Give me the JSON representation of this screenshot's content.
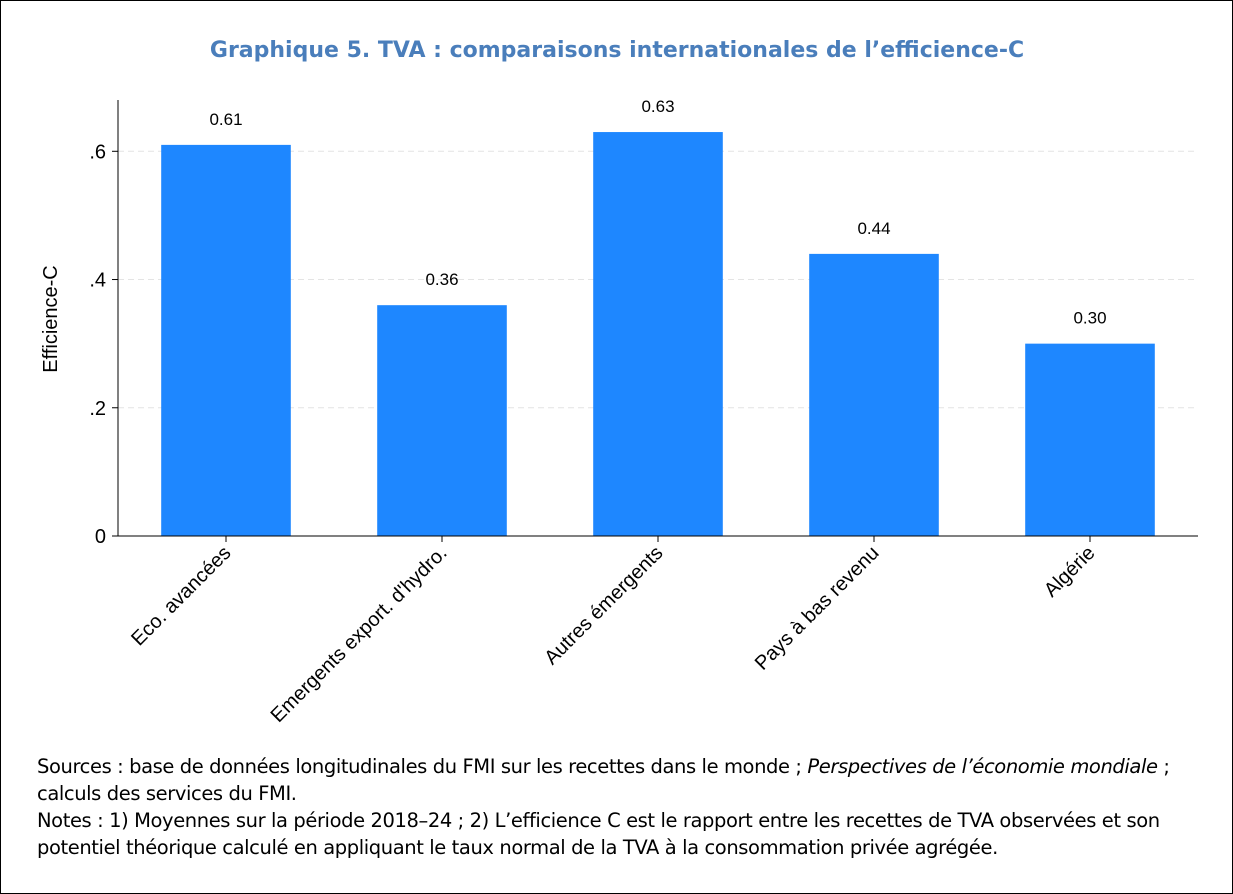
{
  "chart_data": {
    "type": "bar",
    "title": "Graphique 5. TVA : comparaisons internationales de l’efficience-C",
    "y_label": "Efficience-C",
    "categories": [
      "Eco. avancées",
      "Emergents export. d'hydro.",
      "Autres émergents",
      "Pays à bas revenu",
      "Algérie"
    ],
    "values": [
      0.61,
      0.36,
      0.63,
      0.44,
      0.3
    ],
    "value_labels": [
      "0.61",
      "0.36",
      "0.63",
      "0.44",
      "0.30"
    ],
    "color": "#1e87ff",
    "ylim": [
      0,
      0.68
    ],
    "yticks": [
      0,
      {
        "value": 0.2,
        "label": ".2"
      },
      {
        "value": 0.4,
        "label": ".4"
      },
      {
        "value": 0.6,
        "label": ".6"
      }
    ],
    "grid": true
  },
  "notes": {
    "sources_start": "Sources : base de données longitudinales du FMI sur les recettes dans le monde ;",
    "sources_italic": "Perspectives de l’économie mondiale",
    "sources_end": "; calculs des services du FMI.",
    "notes_text": "Notes : 1) Moyennes sur la période 2018–24 ; 2) L’efficience C est le rapport entre les recettes de TVA observées et son potentiel théorique calculé en appliquant le taux normal de la TVA à la consommation privée agrégée."
  }
}
